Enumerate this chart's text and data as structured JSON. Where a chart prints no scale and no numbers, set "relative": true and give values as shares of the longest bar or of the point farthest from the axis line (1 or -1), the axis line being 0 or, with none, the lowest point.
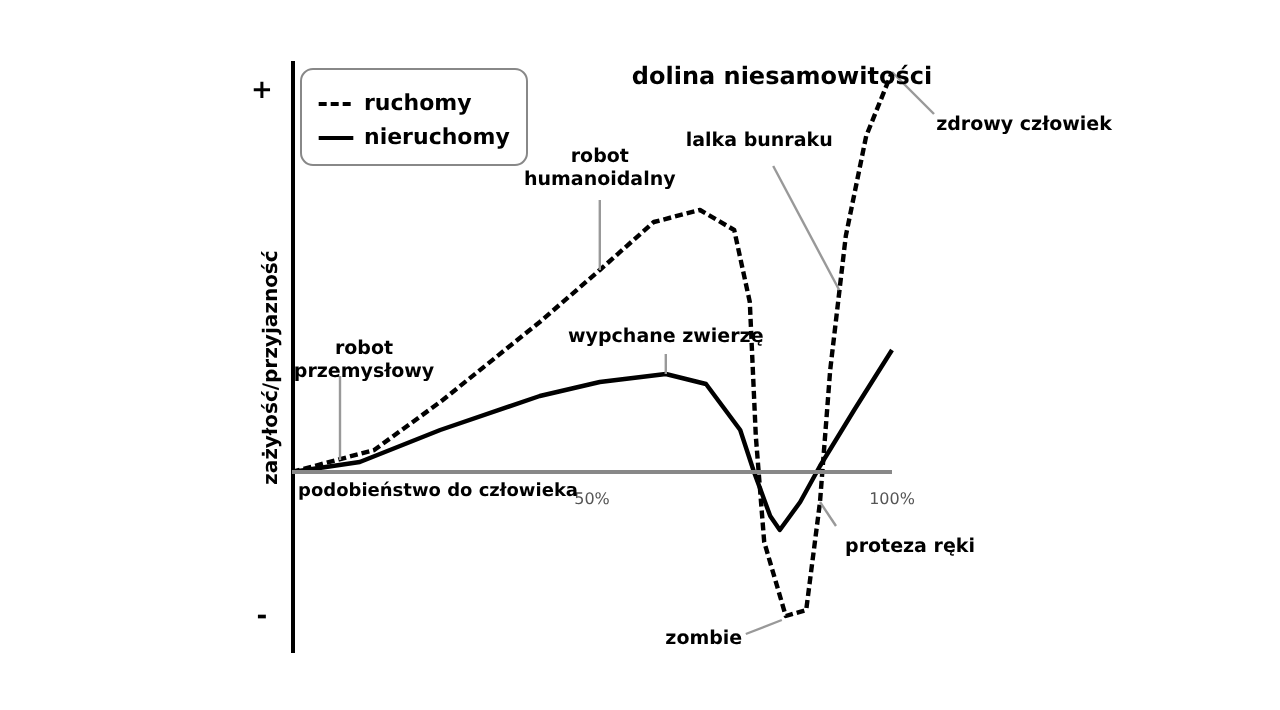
{
  "chart_data": {
    "type": "line",
    "relative": true,
    "xlabel": "podobieństwo do człowieka",
    "ylabel": "zażyłość/przyjazność",
    "xlim": [
      0,
      100
    ],
    "xticks": [
      {
        "value": 50,
        "label": "50%"
      },
      {
        "value": 100,
        "label": "100%"
      }
    ],
    "tick_labels": "x",
    "legend": "top left",
    "series": [
      {
        "name": "ruchomy",
        "color": "#000000",
        "line_style": "dashed",
        "x": [
          0,
          13.7,
          24.7,
          41.3,
          51.3,
          60.3,
          68,
          73.7,
          76.3,
          77.3,
          78.7,
          82.3,
          85.7,
          88,
          89.7,
          92.3,
          95.7,
          100
        ],
        "values": [
          0,
          0.055,
          0.175,
          0.375,
          0.505,
          0.625,
          0.655,
          0.605,
          0.425,
          0.09,
          -0.175,
          -0.36,
          -0.345,
          -0.075,
          0.255,
          0.59,
          0.84,
          1.0
        ]
      },
      {
        "name": "nieruchomy",
        "color": "#000000",
        "line_style": "solid",
        "x": [
          0,
          11.3,
          24.7,
          41.3,
          51.3,
          62.3,
          69,
          74.7,
          77,
          79.7,
          81.3,
          84.7,
          88,
          93.7,
          100
        ],
        "values": [
          0,
          0.025,
          0.105,
          0.19,
          0.225,
          0.245,
          0.22,
          0.105,
          0,
          -0.11,
          -0.145,
          -0.075,
          0.015,
          0.155,
          0.305
        ]
      }
    ],
    "annotations": [
      {
        "text": "robot przemysłowy",
        "x": 8,
        "y": 0.03
      },
      {
        "text": "robot humanoidalny",
        "x": 51.3,
        "y": 0.505
      },
      {
        "text": "wypchane zwierzę",
        "x": 62.3,
        "y": 0.245
      },
      {
        "text": "lalka bunraku",
        "x": 91.2,
        "y": 0.455
      },
      {
        "text": "zdrowy człowiek",
        "x": 100,
        "y": 1.0
      },
      {
        "text": "proteza ręki",
        "x": 88,
        "y": -0.075
      },
      {
        "text": "zombie",
        "x": 82.3,
        "y": -0.36
      },
      "dolina niesamowitości",
      "+",
      "-"
    ]
  }
}
